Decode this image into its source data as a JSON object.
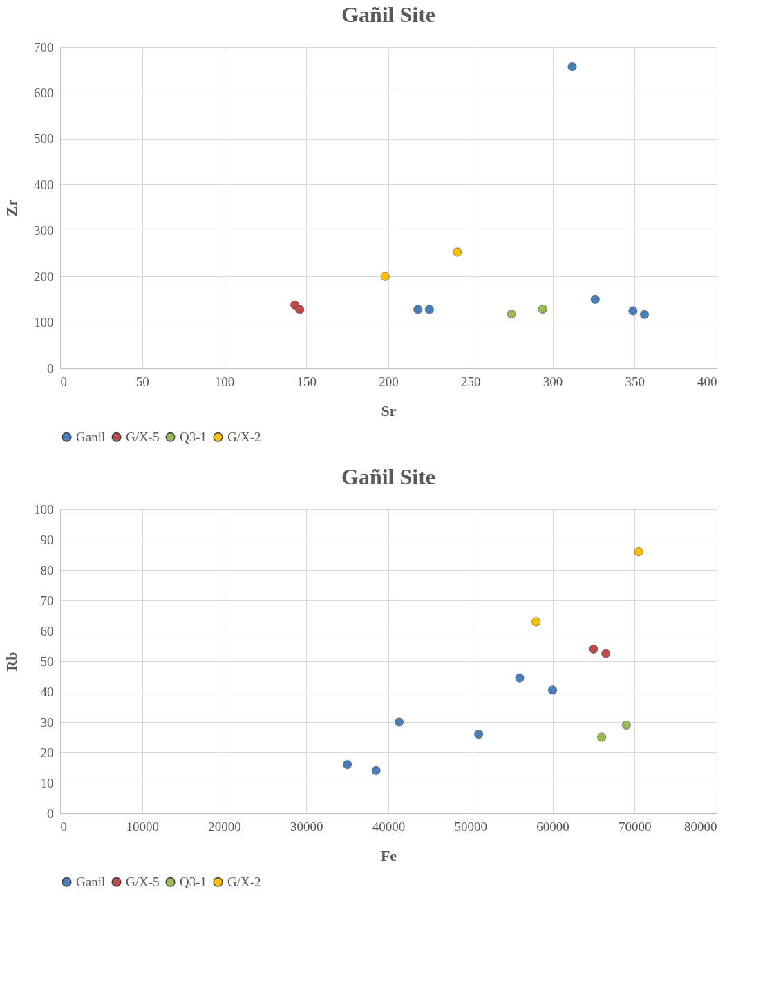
{
  "chart_data": [
    {
      "type": "scatter",
      "title": "Gañil Site",
      "xlabel": "Sr",
      "ylabel": "Zr",
      "xlim": [
        0,
        400
      ],
      "xticks": [
        0,
        50,
        100,
        150,
        200,
        250,
        300,
        350,
        400
      ],
      "ylim": [
        0,
        700
      ],
      "yticks": [
        0,
        100,
        200,
        300,
        400,
        500,
        600,
        700
      ],
      "grid": true,
      "legend": "bottom",
      "marker": "circle",
      "series": [
        {
          "name": "Ganil",
          "color": "#4a7ebb",
          "x": [
            312,
            326,
            349,
            356,
            218,
            225
          ],
          "values": [
            657,
            150,
            125,
            117,
            128,
            128
          ]
        },
        {
          "name": "G/X-5",
          "color": "#be4b48",
          "x": [
            143,
            146
          ],
          "values": [
            138,
            128
          ]
        },
        {
          "name": "Q3-1",
          "color": "#98b954",
          "x": [
            275,
            294
          ],
          "values": [
            118,
            129
          ]
        },
        {
          "name": "G/X-2",
          "color": "#ffc000",
          "x": [
            198,
            242
          ],
          "values": [
            200,
            253
          ]
        }
      ]
    },
    {
      "type": "scatter",
      "title": "Gañil Site",
      "xlabel": "Fe",
      "ylabel": "Rb",
      "xlim": [
        0,
        80000
      ],
      "xticks": [
        0,
        10000,
        20000,
        30000,
        40000,
        50000,
        60000,
        70000,
        80000
      ],
      "ylim": [
        0,
        100
      ],
      "yticks": [
        0,
        10,
        20,
        30,
        40,
        50,
        60,
        70,
        80,
        90,
        100
      ],
      "grid": true,
      "legend": "bottom",
      "marker": "circle",
      "series": [
        {
          "name": "Ganil",
          "color": "#4a7ebb",
          "x": [
            35000,
            38500,
            41300,
            51000,
            56000,
            60000
          ],
          "values": [
            16,
            14,
            30,
            26,
            44.5,
            40.5
          ]
        },
        {
          "name": "G/X-5",
          "color": "#be4b48",
          "x": [
            65000,
            66500
          ],
          "values": [
            54,
            52.5
          ]
        },
        {
          "name": "Q3-1",
          "color": "#98b954",
          "x": [
            66000,
            69000
          ],
          "values": [
            25,
            29
          ]
        },
        {
          "name": "G/X-2",
          "color": "#ffc000",
          "x": [
            58000,
            70500
          ],
          "values": [
            63,
            86
          ]
        }
      ]
    }
  ]
}
